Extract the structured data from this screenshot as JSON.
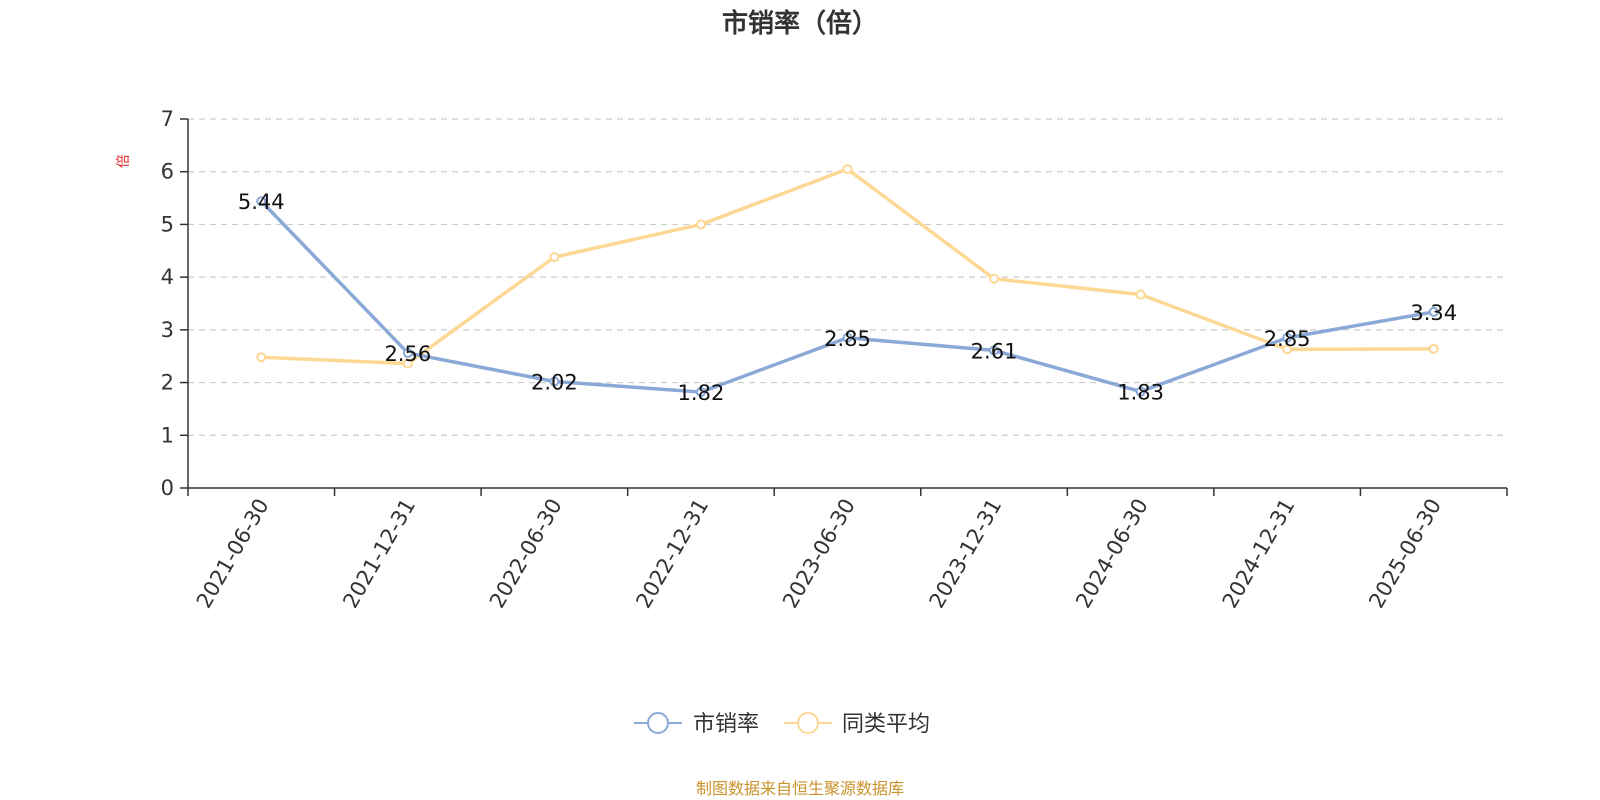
{
  "chart_data": {
    "type": "line",
    "title": "市销率（倍）",
    "ylabel": "倍",
    "xlabel": "",
    "ylim": [
      0,
      7
    ],
    "yticks": [
      0,
      1,
      2,
      3,
      4,
      5,
      6,
      7
    ],
    "grid": true,
    "legend_position": "bottom",
    "categories": [
      "2021-06-30",
      "2021-12-31",
      "2022-06-30",
      "2022-12-31",
      "2023-06-30",
      "2023-12-31",
      "2024-06-30",
      "2024-12-31",
      "2025-06-30"
    ],
    "series": [
      {
        "name": "市销率",
        "color": "#8aa9d6",
        "values": [
          5.44,
          2.56,
          2.02,
          1.82,
          2.85,
          2.61,
          1.83,
          2.85,
          3.34
        ],
        "labels": [
          "5.44",
          "2.56",
          "2.02",
          "1.82",
          "2.85",
          "2.61",
          "1.83",
          "2.85",
          "3.34"
        ]
      },
      {
        "name": "同类平均",
        "color": "#fdd794",
        "values": [
          2.48,
          2.36,
          4.38,
          5.0,
          6.05,
          3.97,
          3.67,
          2.63,
          2.64
        ]
      }
    ],
    "source": "制图数据来自恒生聚源数据库"
  }
}
